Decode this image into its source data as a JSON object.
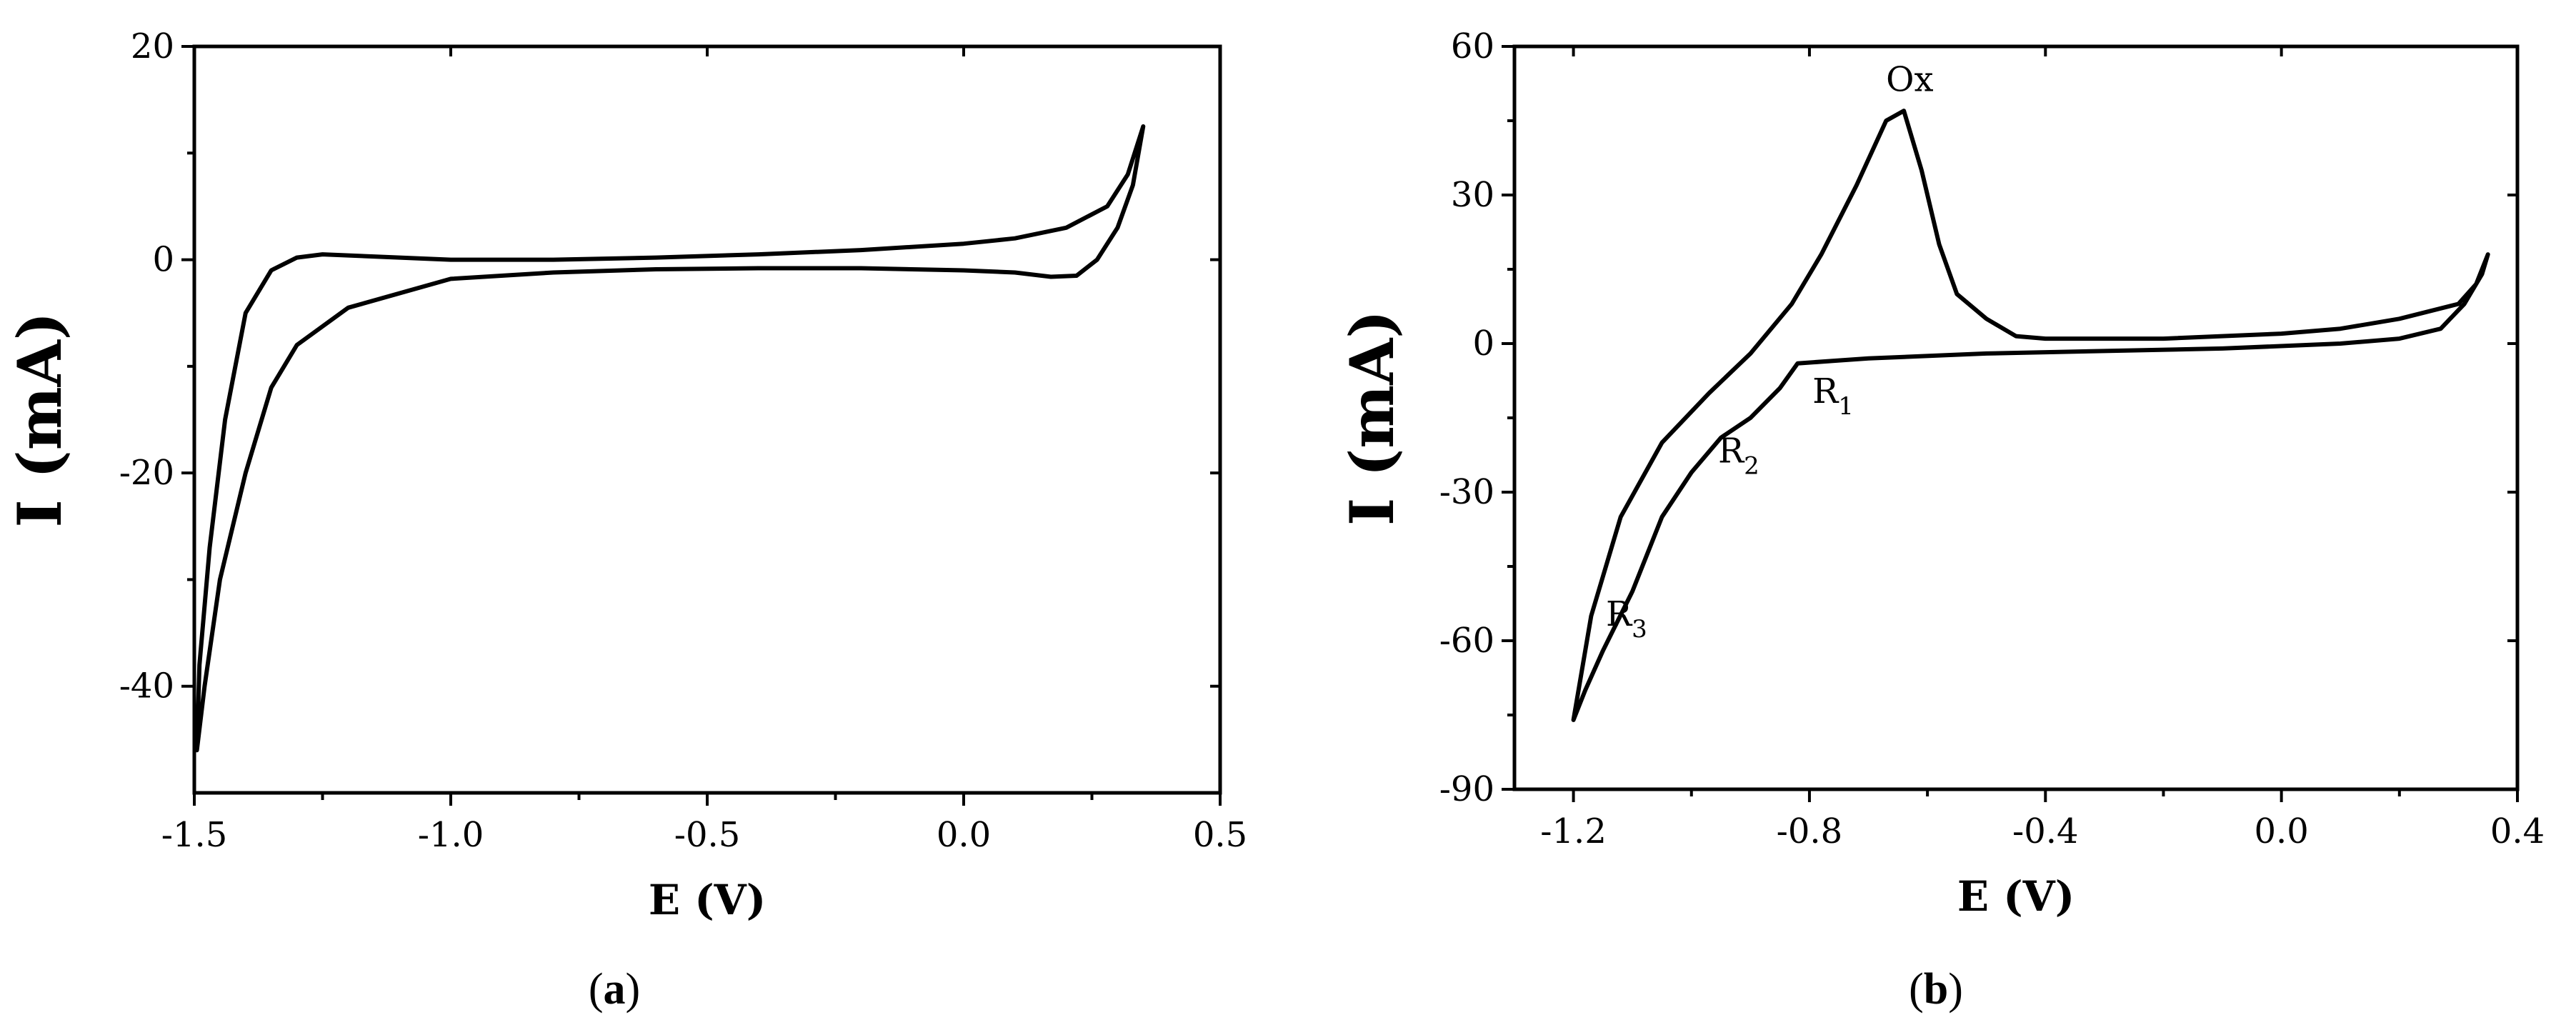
{
  "chart_data": [
    {
      "id": "a",
      "type": "line",
      "caption": "a",
      "xlabel": "E (V)",
      "ylabel": "I (mA)",
      "xlim": [
        -1.5,
        0.5
      ],
      "ylim": [
        -50,
        20
      ],
      "xticks": [
        -1.5,
        -1.0,
        -0.5,
        0.0,
        0.5
      ],
      "xtick_labels": [
        "-1.5",
        "-1.0",
        "-0.5",
        "0.0",
        "0.5"
      ],
      "yticks": [
        -40,
        -20,
        0,
        20
      ],
      "ytick_labels": [
        "-40",
        "-20",
        "0",
        "20"
      ],
      "grid": false,
      "series": [
        {
          "values": [
            [
              0.35,
              12.5
            ],
            [
              0.32,
              8.0
            ],
            [
              0.28,
              5.0
            ],
            [
              0.2,
              3.0
            ],
            [
              0.1,
              2.0
            ],
            [
              0.0,
              1.5
            ],
            [
              -0.2,
              0.9
            ],
            [
              -0.4,
              0.5
            ],
            [
              -0.6,
              0.2
            ],
            [
              -0.8,
              0.0
            ],
            [
              -1.0,
              0.0
            ],
            [
              -1.15,
              0.3
            ],
            [
              -1.25,
              0.5
            ],
            [
              -1.3,
              0.2
            ],
            [
              -1.35,
              -1.0
            ],
            [
              -1.4,
              -5.0
            ],
            [
              -1.44,
              -15.0
            ],
            [
              -1.47,
              -27.0
            ],
            [
              -1.49,
              -38.0
            ],
            [
              -1.495,
              -46.0
            ],
            [
              -1.48,
              -40.0
            ],
            [
              -1.45,
              -30.0
            ],
            [
              -1.4,
              -20.0
            ],
            [
              -1.35,
              -12.0
            ],
            [
              -1.3,
              -8.0
            ],
            [
              -1.2,
              -4.5
            ],
            [
              -1.0,
              -1.8
            ],
            [
              -0.8,
              -1.2
            ],
            [
              -0.6,
              -0.9
            ],
            [
              -0.4,
              -0.8
            ],
            [
              -0.2,
              -0.8
            ],
            [
              0.0,
              -1.0
            ],
            [
              0.1,
              -1.2
            ],
            [
              0.17,
              -1.6
            ],
            [
              0.22,
              -1.5
            ],
            [
              0.26,
              0.0
            ],
            [
              0.3,
              3.0
            ],
            [
              0.33,
              7.0
            ],
            [
              0.35,
              12.5
            ]
          ]
        }
      ]
    },
    {
      "id": "b",
      "type": "line",
      "caption": "b",
      "xlabel": "E (V)",
      "ylabel": "I (mA)",
      "xlim": [
        -1.3,
        0.4
      ],
      "ylim": [
        -90,
        60
      ],
      "xticks": [
        -1.2,
        -0.8,
        -0.4,
        0.0,
        0.4
      ],
      "xtick_labels": [
        "-1.2",
        "-0.8",
        "-0.4",
        "0.0",
        "0.4"
      ],
      "yticks": [
        -90,
        -60,
        -30,
        0,
        30,
        60
      ],
      "ytick_labels": [
        "-90",
        "-60",
        "-30",
        "0",
        "30",
        "60"
      ],
      "grid": false,
      "annotations": [
        {
          "text": "Ox",
          "x": -0.63,
          "y": 51
        },
        {
          "text": "R",
          "sub": "1",
          "x": -0.76,
          "y": -12
        },
        {
          "text": "R",
          "sub": "2",
          "x": -0.92,
          "y": -24
        },
        {
          "text": "R",
          "sub": "3",
          "x": -1.11,
          "y": -57
        }
      ],
      "series": [
        {
          "values": [
            [
              0.35,
              18.0
            ],
            [
              0.33,
              12.0
            ],
            [
              0.3,
              8.0
            ],
            [
              0.2,
              5.0
            ],
            [
              0.1,
              3.0
            ],
            [
              0.0,
              2.0
            ],
            [
              -0.2,
              1.0
            ],
            [
              -0.4,
              1.0
            ],
            [
              -0.45,
              1.5
            ],
            [
              -0.5,
              5.0
            ],
            [
              -0.55,
              10.0
            ],
            [
              -0.58,
              20.0
            ],
            [
              -0.61,
              35.0
            ],
            [
              -0.64,
              47.0
            ],
            [
              -0.67,
              45.0
            ],
            [
              -0.72,
              32.0
            ],
            [
              -0.78,
              18.0
            ],
            [
              -0.83,
              8.0
            ],
            [
              -0.9,
              -2.0
            ],
            [
              -0.97,
              -10.0
            ],
            [
              -1.05,
              -20.0
            ],
            [
              -1.12,
              -35.0
            ],
            [
              -1.17,
              -55.0
            ],
            [
              -1.2,
              -76.0
            ],
            [
              -1.18,
              -70.0
            ],
            [
              -1.15,
              -62.0
            ],
            [
              -1.1,
              -50.0
            ],
            [
              -1.05,
              -35.0
            ],
            [
              -1.0,
              -26.0
            ],
            [
              -0.95,
              -19.0
            ],
            [
              -0.9,
              -15.0
            ],
            [
              -0.85,
              -9.0
            ],
            [
              -0.82,
              -4.0
            ],
            [
              -0.7,
              -3.0
            ],
            [
              -0.5,
              -2.0
            ],
            [
              -0.3,
              -1.5
            ],
            [
              -0.1,
              -1.0
            ],
            [
              0.1,
              0.0
            ],
            [
              0.2,
              1.0
            ],
            [
              0.27,
              3.0
            ],
            [
              0.31,
              8.0
            ],
            [
              0.34,
              14.0
            ],
            [
              0.35,
              18.0
            ]
          ]
        }
      ]
    }
  ]
}
